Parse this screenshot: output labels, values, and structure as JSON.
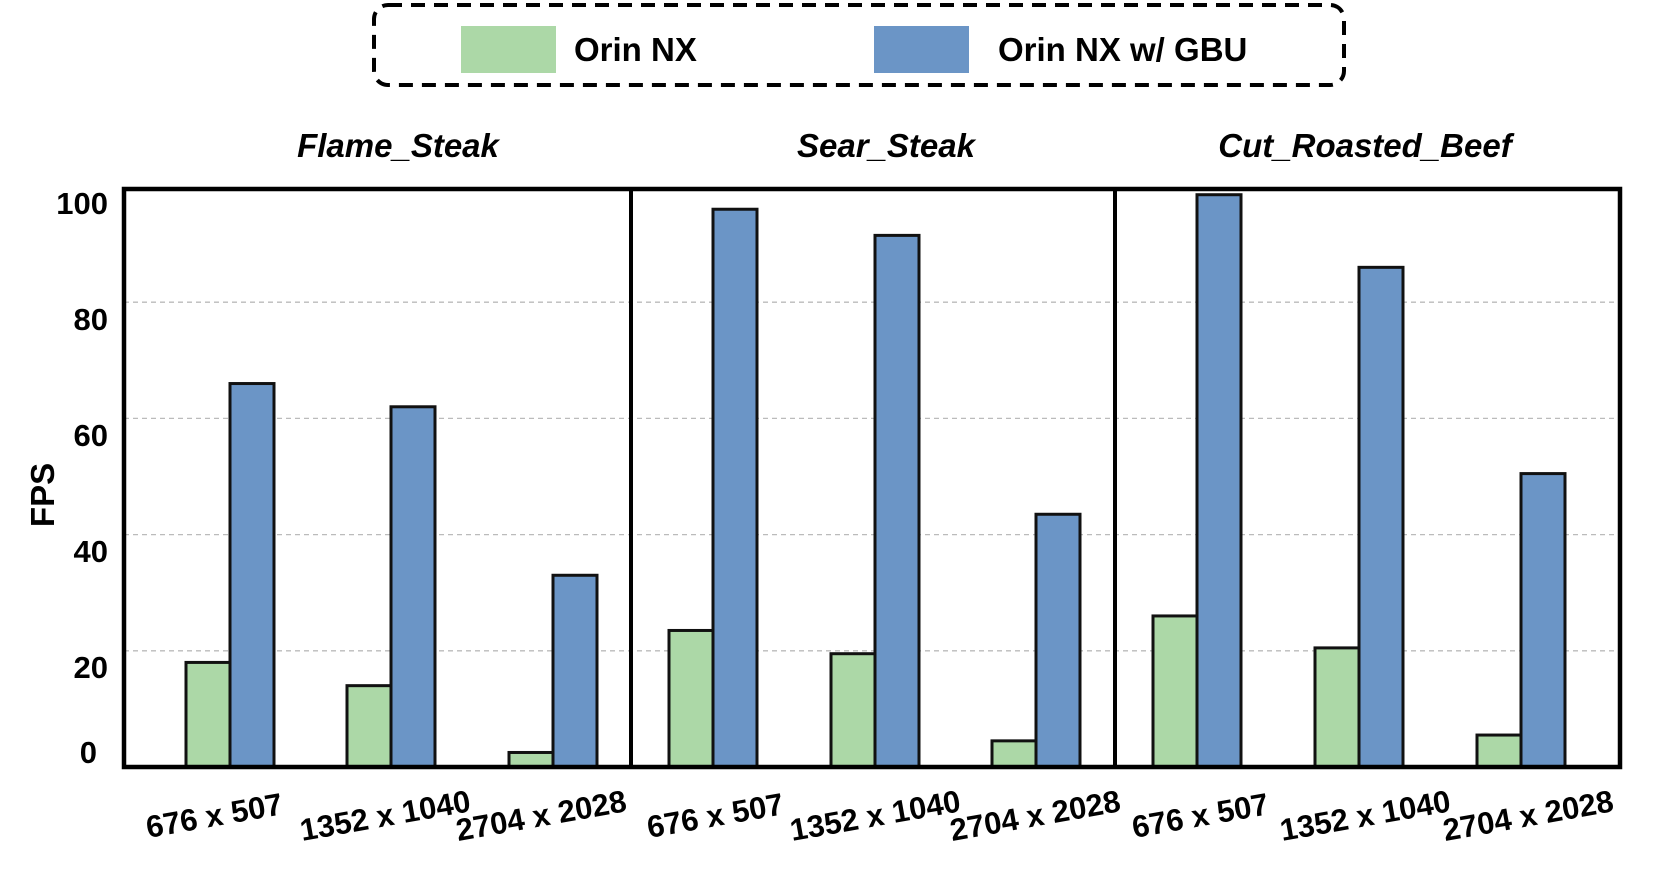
{
  "chart_data": {
    "type": "bar",
    "ylabel": "FPS",
    "ylim": [
      0,
      100
    ],
    "yticks": [
      "0",
      "20",
      "40",
      "60",
      "80",
      "100"
    ],
    "grid": "horizontal dashed",
    "legend_position": "top-center",
    "colors": {
      "Orin NX": "#acd8a7",
      "Orin NX w/ GBU": "#6b95c6"
    },
    "panels": [
      {
        "title": "Flame_Steak",
        "categories": [
          "676 x 507",
          "1352 x 1040",
          "2704 x 2028"
        ],
        "series": [
          {
            "name": "Orin NX",
            "values": [
              18,
              14,
              2.5
            ]
          },
          {
            "name": "Orin NX w/ GBU",
            "values": [
              66,
              62,
              33
            ]
          }
        ]
      },
      {
        "title": "Sear_Steak",
        "categories": [
          "676 x 507",
          "1352 x 1040",
          "2704 x 2028"
        ],
        "series": [
          {
            "name": "Orin NX",
            "values": [
              23.5,
              19.5,
              4.5
            ]
          },
          {
            "name": "Orin NX w/ GBU",
            "values": [
              96,
              91.5,
              43.5
            ]
          }
        ]
      },
      {
        "title": "Cut_Roasted_Beef",
        "categories": [
          "676 x 507",
          "1352 x 1040",
          "2704 x 2028"
        ],
        "series": [
          {
            "name": "Orin NX",
            "values": [
              26,
              20.5,
              5.5
            ]
          },
          {
            "name": "Orin NX w/ GBU",
            "values": [
              98.5,
              86,
              50.5
            ]
          }
        ]
      }
    ]
  }
}
